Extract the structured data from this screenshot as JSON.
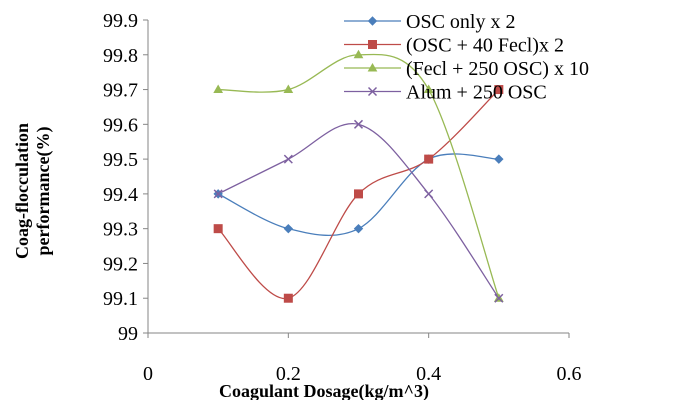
{
  "chart_data": {
    "type": "line",
    "title": "",
    "xlabel": "Coagulant Dosage(kg/m^3)",
    "ylabel_lines": [
      "Coag-flocculation",
      "performance(%)"
    ],
    "xlim": [
      0,
      0.6
    ],
    "ylim": [
      99,
      99.9
    ],
    "x_ticks": [
      0,
      0.2,
      0.4,
      0.6
    ],
    "x_tick_labels": [
      "0",
      "0.2",
      "0.4",
      "0.6"
    ],
    "y_ticks": [
      99,
      99.1,
      99.2,
      99.3,
      99.4,
      99.5,
      99.6,
      99.7,
      99.8,
      99.9
    ],
    "y_tick_labels": [
      "99",
      "99.1",
      "99.2",
      "99.3",
      "99.4",
      "99.5",
      "99.6",
      "99.7",
      "99.8",
      "99.9"
    ],
    "grid": false,
    "legend_position": "top-right",
    "smooth": true,
    "x": [
      0.1,
      0.2,
      0.3,
      0.4,
      0.5
    ],
    "series": [
      {
        "name": "OSC only x 2",
        "values": [
          99.4,
          99.3,
          99.3,
          99.5,
          99.5
        ],
        "color": "#4a7ebb",
        "marker": "diamond"
      },
      {
        "name": "(OSC + 40 Fecl)x 2",
        "values": [
          99.3,
          99.1,
          99.4,
          99.5,
          99.7
        ],
        "color": "#be4b48",
        "marker": "square"
      },
      {
        "name": "(Fecl + 250 OSC) x 10",
        "values": [
          99.7,
          99.7,
          99.8,
          99.7,
          99.1
        ],
        "color": "#98b954",
        "marker": "triangle"
      },
      {
        "name": "Alum + 250 OSC",
        "values": [
          99.4,
          99.5,
          99.6,
          99.4,
          99.1
        ],
        "color": "#7d60a0",
        "marker": "x"
      }
    ]
  }
}
